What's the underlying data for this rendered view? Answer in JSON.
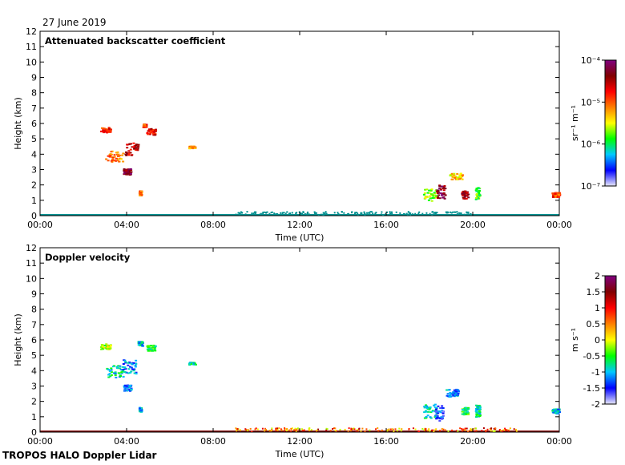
{
  "date": "27 June 2019",
  "footer": "TROPOS HALO Doppler Lidar",
  "colors": {
    "backscatter_scale": [
      "#e8e8fa",
      "#0000ff",
      "#00c8ff",
      "#00ff00",
      "#ffff00",
      "#ff8000",
      "#ff0000",
      "#800000",
      "#800080"
    ],
    "velocity_scale": [
      "#e8e8fa",
      "#0000ff",
      "#00c8ff",
      "#00ff00",
      "#ffff00",
      "#ff8000",
      "#ff0000",
      "#800000",
      "#800080"
    ],
    "ground_layer_top": "#009090",
    "ground_layer_bottom": "#800000"
  },
  "chart_data": [
    {
      "type": "heatmap",
      "title": "Attenuated backscatter coefficient",
      "xlabel": "Time (UTC)",
      "ylabel": "Height (km)",
      "x_ticks": [
        "00:00",
        "04:00",
        "08:00",
        "12:00",
        "16:00",
        "20:00",
        "00:00"
      ],
      "y_ticks": [
        "0",
        "1",
        "2",
        "3",
        "4",
        "5",
        "6",
        "7",
        "8",
        "9",
        "10",
        "11",
        "12"
      ],
      "xlim_hours": [
        0,
        24
      ],
      "ylim": [
        0,
        12
      ],
      "colorbar": {
        "label": "sr⁻¹ m⁻¹",
        "ticks": [
          "10⁻⁴",
          "10⁻⁵",
          "10⁻⁶",
          "10⁻⁷"
        ],
        "scale": "log"
      },
      "features": [
        {
          "t": 3.0,
          "h": 5.6,
          "dt": 0.45,
          "dh": 0.35,
          "level": 0.72
        },
        {
          "t": 3.4,
          "h": 3.9,
          "dt": 0.8,
          "dh": 0.7,
          "level": 0.62
        },
        {
          "t": 4.2,
          "h": 4.4,
          "dt": 0.6,
          "dh": 0.9,
          "level": 0.8
        },
        {
          "t": 4.0,
          "h": 2.9,
          "dt": 0.35,
          "dh": 0.4,
          "level": 0.9
        },
        {
          "t": 5.1,
          "h": 5.5,
          "dt": 0.4,
          "dh": 0.4,
          "level": 0.75
        },
        {
          "t": 4.8,
          "h": 5.9,
          "dt": 0.15,
          "dh": 0.2,
          "level": 0.7
        },
        {
          "t": 7.0,
          "h": 4.5,
          "dt": 0.3,
          "dh": 0.15,
          "level": 0.62
        },
        {
          "t": 4.6,
          "h": 1.5,
          "dt": 0.1,
          "dh": 0.3,
          "level": 0.65
        },
        {
          "t": 18.0,
          "h": 1.4,
          "dt": 0.6,
          "dh": 0.8,
          "level": 0.45
        },
        {
          "t": 18.5,
          "h": 1.6,
          "dt": 0.4,
          "dh": 0.9,
          "level": 0.9
        },
        {
          "t": 19.2,
          "h": 2.6,
          "dt": 0.6,
          "dh": 0.4,
          "level": 0.55
        },
        {
          "t": 19.6,
          "h": 1.4,
          "dt": 0.3,
          "dh": 0.5,
          "level": 0.85
        },
        {
          "t": 20.2,
          "h": 1.5,
          "dt": 0.2,
          "dh": 0.8,
          "level": 0.4
        },
        {
          "t": 23.8,
          "h": 1.4,
          "dt": 0.35,
          "dh": 0.3,
          "level": 0.7
        }
      ]
    },
    {
      "type": "heatmap",
      "title": "Doppler velocity",
      "xlabel": "Time (UTC)",
      "ylabel": "Height (km)",
      "x_ticks": [
        "00:00",
        "04:00",
        "08:00",
        "12:00",
        "16:00",
        "20:00",
        "00:00"
      ],
      "y_ticks": [
        "0",
        "1",
        "2",
        "3",
        "4",
        "5",
        "6",
        "7",
        "8",
        "9",
        "10",
        "11",
        "12"
      ],
      "xlim_hours": [
        0,
        24
      ],
      "ylim": [
        0,
        12
      ],
      "colorbar": {
        "label": "m s⁻¹",
        "ticks": [
          "2",
          "1.5",
          "1",
          "0.5",
          "0",
          "-0.5",
          "-1",
          "-1.5",
          "-2"
        ],
        "range": [
          -2,
          2
        ]
      },
      "features": [
        {
          "t": 3.0,
          "h": 5.6,
          "dt": 0.45,
          "dh": 0.35,
          "level": 0.45
        },
        {
          "t": 3.4,
          "h": 4.0,
          "dt": 0.8,
          "dh": 0.8,
          "level": 0.3
        },
        {
          "t": 4.1,
          "h": 4.3,
          "dt": 0.6,
          "dh": 0.9,
          "level": 0.2
        },
        {
          "t": 4.0,
          "h": 2.9,
          "dt": 0.35,
          "dh": 0.4,
          "level": 0.18
        },
        {
          "t": 5.1,
          "h": 5.5,
          "dt": 0.4,
          "dh": 0.4,
          "level": 0.35
        },
        {
          "t": 4.6,
          "h": 5.8,
          "dt": 0.2,
          "dh": 0.3,
          "level": 0.25
        },
        {
          "t": 7.0,
          "h": 4.5,
          "dt": 0.3,
          "dh": 0.15,
          "level": 0.3
        },
        {
          "t": 4.6,
          "h": 1.5,
          "dt": 0.1,
          "dh": 0.3,
          "level": 0.25
        },
        {
          "t": 18.0,
          "h": 1.4,
          "dt": 0.6,
          "dh": 0.9,
          "level": 0.3
        },
        {
          "t": 18.4,
          "h": 1.3,
          "dt": 0.4,
          "dh": 1.1,
          "level": 0.15
        },
        {
          "t": 19.0,
          "h": 2.6,
          "dt": 0.6,
          "dh": 0.5,
          "level": 0.2
        },
        {
          "t": 19.6,
          "h": 1.4,
          "dt": 0.3,
          "dh": 0.5,
          "level": 0.35
        },
        {
          "t": 20.2,
          "h": 1.4,
          "dt": 0.2,
          "dh": 0.8,
          "level": 0.3
        },
        {
          "t": 23.8,
          "h": 1.4,
          "dt": 0.35,
          "dh": 0.3,
          "level": 0.25
        }
      ]
    }
  ]
}
